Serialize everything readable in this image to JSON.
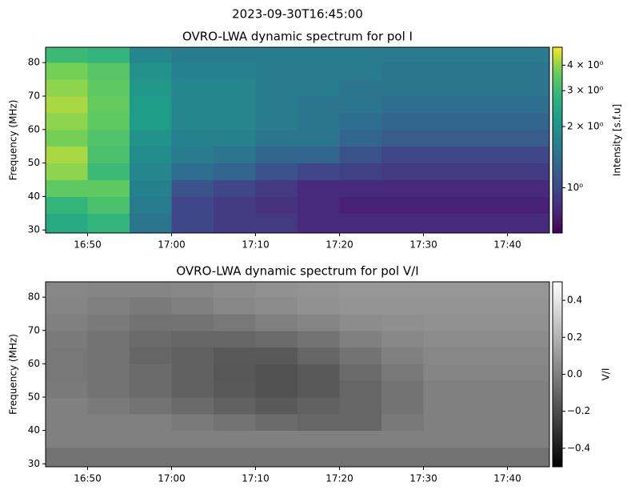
{
  "suptitle": "2023-09-30T16:45:00",
  "chart_data": [
    {
      "type": "heatmap",
      "title": "OVRO-LWA dynamic spectrum for pol I",
      "ylabel": "Frequency (MHz)",
      "xbins": [
        "16:45",
        "16:50",
        "16:55",
        "17:00",
        "17:05",
        "17:10",
        "17:15",
        "17:20",
        "17:25",
        "17:30",
        "17:35",
        "17:40",
        "17:45"
      ],
      "ybins": [
        29.1,
        35,
        40,
        45,
        50,
        55,
        60,
        65,
        70,
        75,
        80,
        84.6
      ],
      "xlim": [
        "16:45",
        "17:45"
      ],
      "xticks": [
        "16:50",
        "17:00",
        "17:10",
        "17:20",
        "17:30",
        "17:40"
      ],
      "ylim": [
        29.1,
        84.6
      ],
      "yticks": [
        30,
        40,
        50,
        60,
        70,
        80
      ],
      "values": [
        [
          2.5,
          2.8,
          1.5,
          1.0,
          0.9,
          0.9,
          0.8,
          0.8,
          0.8,
          0.8,
          0.8,
          0.8
        ],
        [
          2.8,
          3.2,
          1.6,
          1.0,
          0.9,
          0.85,
          0.8,
          0.75,
          0.75,
          0.75,
          0.75,
          0.75
        ],
        [
          3.5,
          3.5,
          1.7,
          1.1,
          1.0,
          0.9,
          0.8,
          0.8,
          0.8,
          0.8,
          0.8,
          0.8
        ],
        [
          4.0,
          3.0,
          1.8,
          1.4,
          1.3,
          1.1,
          1.0,
          0.95,
          0.9,
          0.9,
          0.9,
          0.9
        ],
        [
          4.2,
          3.2,
          1.9,
          1.6,
          1.5,
          1.3,
          1.3,
          1.1,
          1.0,
          1.0,
          1.0,
          1.0
        ],
        [
          3.8,
          3.3,
          2.0,
          1.7,
          1.7,
          1.5,
          1.5,
          1.3,
          1.2,
          1.2,
          1.2,
          1.2
        ],
        [
          4.0,
          3.5,
          2.2,
          1.8,
          1.8,
          1.6,
          1.5,
          1.4,
          1.3,
          1.3,
          1.3,
          1.3
        ],
        [
          4.2,
          3.6,
          2.2,
          1.8,
          1.8,
          1.6,
          1.5,
          1.5,
          1.4,
          1.4,
          1.4,
          1.4
        ],
        [
          4.0,
          3.5,
          2.1,
          1.8,
          1.8,
          1.6,
          1.6,
          1.5,
          1.5,
          1.5,
          1.5,
          1.5
        ],
        [
          3.8,
          3.4,
          2.0,
          1.7,
          1.7,
          1.6,
          1.6,
          1.6,
          1.5,
          1.5,
          1.5,
          1.5
        ],
        [
          3.0,
          2.8,
          1.8,
          1.6,
          1.6,
          1.6,
          1.6,
          1.6,
          1.6,
          1.6,
          1.6,
          1.6
        ]
      ],
      "colormap": "viridis",
      "colorbar": {
        "label": "Intensity [s.f.u]",
        "lim": [
          0.6,
          4.9
        ],
        "scale": "log",
        "ticks": [
          {
            "value": 4,
            "label": "4 × 10⁰"
          },
          {
            "value": 3,
            "label": "3 × 10⁰"
          },
          {
            "value": 2,
            "label": "2 × 10⁰"
          },
          {
            "value": 1,
            "label": "10⁰"
          }
        ]
      }
    },
    {
      "type": "heatmap",
      "title": "OVRO-LWA dynamic spectrum for pol V/I",
      "ylabel": "Frequency (MHz)",
      "xbins": [
        "16:45",
        "16:50",
        "16:55",
        "17:00",
        "17:05",
        "17:10",
        "17:15",
        "17:20",
        "17:25",
        "17:30",
        "17:35",
        "17:40",
        "17:45"
      ],
      "ybins": [
        29.1,
        35,
        40,
        45,
        50,
        55,
        60,
        65,
        70,
        75,
        80,
        84.6
      ],
      "xlim": [
        "16:45",
        "17:45"
      ],
      "xticks": [
        "16:50",
        "17:00",
        "17:10",
        "17:20",
        "17:30",
        "17:40"
      ],
      "ylim": [
        29.1,
        84.6
      ],
      "yticks": [
        30,
        40,
        50,
        60,
        70,
        80
      ],
      "values": [
        [
          -0.05,
          -0.05,
          -0.05,
          -0.05,
          -0.05,
          -0.05,
          -0.05,
          -0.05,
          -0.05,
          -0.05,
          -0.05,
          -0.05
        ],
        [
          0,
          0,
          0,
          0,
          0,
          0,
          0,
          0,
          0,
          0,
          0,
          0
        ],
        [
          0,
          0,
          0,
          -0.02,
          -0.05,
          -0.08,
          -0.1,
          -0.1,
          -0.03,
          0,
          0,
          0
        ],
        [
          0,
          -0.02,
          -0.05,
          -0.08,
          -0.12,
          -0.15,
          -0.12,
          -0.1,
          -0.05,
          0,
          0,
          0
        ],
        [
          -0.02,
          -0.05,
          -0.08,
          -0.12,
          -0.15,
          -0.18,
          -0.15,
          -0.1,
          -0.05,
          0,
          0,
          0
        ],
        [
          -0.03,
          -0.05,
          -0.08,
          -0.12,
          -0.16,
          -0.18,
          -0.15,
          -0.08,
          -0.03,
          0.02,
          0.02,
          0.02
        ],
        [
          -0.03,
          -0.05,
          -0.1,
          -0.12,
          -0.15,
          -0.15,
          -0.1,
          -0.05,
          0,
          0.03,
          0.03,
          0.03
        ],
        [
          -0.02,
          -0.05,
          -0.08,
          -0.1,
          -0.1,
          -0.08,
          -0.05,
          0,
          0.03,
          0.05,
          0.05,
          0.05
        ],
        [
          0,
          -0.02,
          -0.05,
          -0.05,
          -0.03,
          0,
          0.02,
          0.05,
          0.06,
          0.07,
          0.07,
          0.07
        ],
        [
          0.02,
          0,
          -0.02,
          0,
          0.03,
          0.05,
          0.07,
          0.08,
          0.08,
          0.08,
          0.08,
          0.08
        ],
        [
          0.03,
          0.02,
          0.02,
          0.03,
          0.05,
          0.07,
          0.08,
          0.09,
          0.09,
          0.09,
          0.09,
          0.09
        ]
      ],
      "colormap": "gray",
      "colorbar": {
        "label": "V/I",
        "lim": [
          -0.5,
          0.5
        ],
        "scale": "linear",
        "ticks": [
          {
            "value": 0.4,
            "label": "0.4"
          },
          {
            "value": 0.2,
            "label": "0.2"
          },
          {
            "value": 0,
            "label": "0.0"
          },
          {
            "value": -0.2,
            "label": "−0.2"
          },
          {
            "value": -0.4,
            "label": "−0.4"
          }
        ]
      }
    }
  ]
}
